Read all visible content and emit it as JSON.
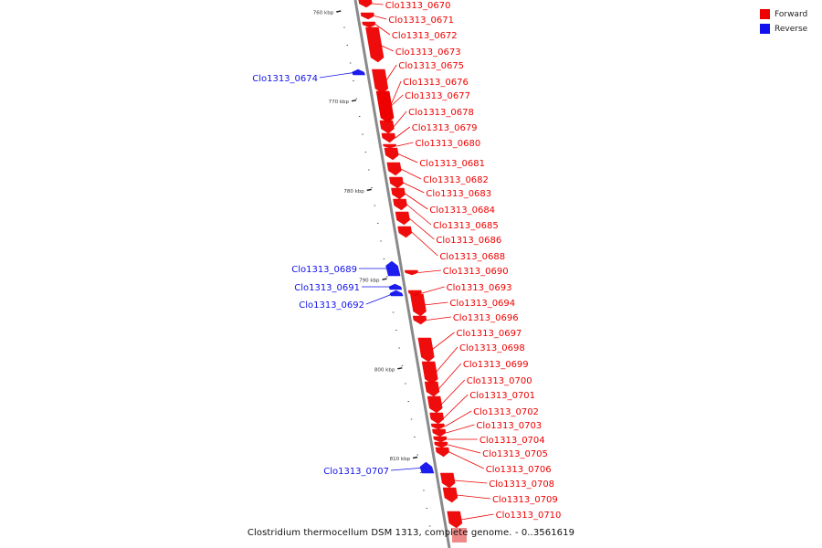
{
  "title": "Clostridium thermocellum DSM 1313, complete genome. - 0..3561619",
  "legend": [
    {
      "label": "Forward",
      "color": "#ee0000"
    },
    {
      "label": "Reverse",
      "color": "#1111ee"
    }
  ],
  "colors": {
    "forward": "#ee0000",
    "reverse": "#1111ee",
    "backbone": "#8a8a8a",
    "tick": "#222222"
  },
  "scale_ticks": [
    {
      "kbp": 760,
      "label": "760 kbp"
    },
    {
      "kbp": 770,
      "label": "770 kbp"
    },
    {
      "kbp": 780,
      "label": "780 kbp"
    },
    {
      "kbp": 790,
      "label": "790 kbp"
    },
    {
      "kbp": 800,
      "label": "800 kbp"
    },
    {
      "kbp": 810,
      "label": "810 kbp"
    }
  ],
  "genes": [
    {
      "name": "Clo1313_0670",
      "strand": "forward"
    },
    {
      "name": "Clo1313_0671",
      "strand": "forward"
    },
    {
      "name": "Clo1313_0672",
      "strand": "forward"
    },
    {
      "name": "Clo1313_0673",
      "strand": "forward"
    },
    {
      "name": "Clo1313_0674",
      "strand": "reverse"
    },
    {
      "name": "Clo1313_0675",
      "strand": "forward"
    },
    {
      "name": "Clo1313_0676",
      "strand": "forward"
    },
    {
      "name": "Clo1313_0677",
      "strand": "forward"
    },
    {
      "name": "Clo1313_0678",
      "strand": "forward"
    },
    {
      "name": "Clo1313_0679",
      "strand": "forward"
    },
    {
      "name": "Clo1313_0680",
      "strand": "forward"
    },
    {
      "name": "Clo1313_0681",
      "strand": "forward"
    },
    {
      "name": "Clo1313_0682",
      "strand": "forward"
    },
    {
      "name": "Clo1313_0683",
      "strand": "forward"
    },
    {
      "name": "Clo1313_0684",
      "strand": "forward"
    },
    {
      "name": "Clo1313_0685",
      "strand": "forward"
    },
    {
      "name": "Clo1313_0686",
      "strand": "forward"
    },
    {
      "name": "Clo1313_0688",
      "strand": "forward"
    },
    {
      "name": "Clo1313_0689",
      "strand": "reverse"
    },
    {
      "name": "Clo1313_0690",
      "strand": "forward"
    },
    {
      "name": "Clo1313_0691",
      "strand": "reverse"
    },
    {
      "name": "Clo1313_0692",
      "strand": "reverse"
    },
    {
      "name": "Clo1313_0693",
      "strand": "forward"
    },
    {
      "name": "Clo1313_0694",
      "strand": "forward"
    },
    {
      "name": "Clo1313_0696",
      "strand": "forward"
    },
    {
      "name": "Clo1313_0697",
      "strand": "forward"
    },
    {
      "name": "Clo1313_0698",
      "strand": "forward"
    },
    {
      "name": "Clo1313_0699",
      "strand": "forward"
    },
    {
      "name": "Clo1313_0700",
      "strand": "forward"
    },
    {
      "name": "Clo1313_0701",
      "strand": "forward"
    },
    {
      "name": "Clo1313_0702",
      "strand": "forward"
    },
    {
      "name": "Clo1313_0703",
      "strand": "forward"
    },
    {
      "name": "Clo1313_0704",
      "strand": "forward"
    },
    {
      "name": "Clo1313_0705",
      "strand": "forward"
    },
    {
      "name": "Clo1313_0706",
      "strand": "forward"
    },
    {
      "name": "Clo1313_0707",
      "strand": "reverse"
    },
    {
      "name": "Clo1313_0708",
      "strand": "forward"
    },
    {
      "name": "Clo1313_0709",
      "strand": "forward"
    },
    {
      "name": "Clo1313_0710",
      "strand": "forward"
    }
  ]
}
